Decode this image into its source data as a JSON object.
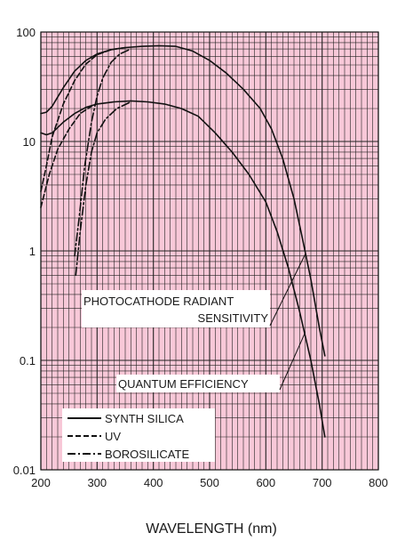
{
  "chart_data": {
    "type": "line",
    "xlabel": "WAVELENGTH (nm)",
    "ylabel": "",
    "xlim": [
      200,
      800
    ],
    "ylim": [
      0.01,
      100
    ],
    "yscale": "log",
    "grid": true,
    "background_color": "#f8c8d8",
    "line_color": "#111111",
    "x_ticks": [
      "200",
      "300",
      "400",
      "500",
      "600",
      "700",
      "800"
    ],
    "y_ticks": [
      "100",
      "10",
      "1",
      "0.1",
      "0.01"
    ],
    "series": [
      {
        "group": "photocathode_radiant_sensitivity",
        "style": "solid",
        "points": [
          [
            200,
            18
          ],
          [
            210,
            18.5
          ],
          [
            220,
            21
          ],
          [
            240,
            31
          ],
          [
            260,
            44
          ],
          [
            280,
            55
          ],
          [
            300,
            63
          ],
          [
            325,
            69
          ],
          [
            350,
            72
          ],
          [
            380,
            74
          ],
          [
            410,
            75
          ],
          [
            440,
            74
          ],
          [
            470,
            67
          ],
          [
            500,
            55
          ],
          [
            530,
            42
          ],
          [
            560,
            30
          ],
          [
            590,
            20
          ],
          [
            610,
            13
          ],
          [
            630,
            7
          ],
          [
            650,
            3
          ],
          [
            665,
            1.3
          ],
          [
            680,
            0.55
          ],
          [
            695,
            0.2
          ],
          [
            705,
            0.11
          ]
        ]
      },
      {
        "group": "photocathode_radiant_sensitivity",
        "style": "dashed",
        "points": [
          [
            200,
            3.5
          ],
          [
            210,
            6
          ],
          [
            220,
            11
          ],
          [
            240,
            22
          ],
          [
            260,
            36
          ],
          [
            280,
            51
          ],
          [
            300,
            62
          ],
          [
            325,
            69
          ],
          [
            350,
            72
          ]
        ]
      },
      {
        "group": "photocathode_radiant_sensitivity",
        "style": "dashdot",
        "points": [
          [
            260,
            0.9
          ],
          [
            268,
            2
          ],
          [
            278,
            6
          ],
          [
            290,
            15
          ],
          [
            300,
            26
          ],
          [
            310,
            38
          ],
          [
            325,
            53
          ],
          [
            340,
            63
          ],
          [
            360,
            70
          ]
        ]
      },
      {
        "group": "quantum_efficiency",
        "style": "solid",
        "points": [
          [
            200,
            12
          ],
          [
            210,
            11.5
          ],
          [
            220,
            12
          ],
          [
            240,
            15
          ],
          [
            260,
            18
          ],
          [
            280,
            20.5
          ],
          [
            300,
            22
          ],
          [
            330,
            23
          ],
          [
            360,
            23.5
          ],
          [
            390,
            23
          ],
          [
            420,
            22
          ],
          [
            450,
            20
          ],
          [
            480,
            17
          ],
          [
            510,
            12
          ],
          [
            540,
            8
          ],
          [
            570,
            5
          ],
          [
            600,
            2.8
          ],
          [
            620,
            1.5
          ],
          [
            640,
            0.7
          ],
          [
            660,
            0.28
          ],
          [
            680,
            0.1
          ],
          [
            695,
            0.04
          ],
          [
            705,
            0.02
          ]
        ]
      },
      {
        "group": "quantum_efficiency",
        "style": "dashed",
        "points": [
          [
            200,
            2.5
          ],
          [
            215,
            5
          ],
          [
            230,
            8.5
          ],
          [
            250,
            13
          ],
          [
            270,
            18
          ],
          [
            290,
            21
          ]
        ]
      },
      {
        "group": "quantum_efficiency",
        "style": "dashdot",
        "points": [
          [
            262,
            0.6
          ],
          [
            270,
            1.5
          ],
          [
            280,
            4
          ],
          [
            290,
            8
          ],
          [
            300,
            12
          ],
          [
            315,
            16
          ],
          [
            335,
            20
          ],
          [
            360,
            23
          ]
        ]
      }
    ],
    "annotations": [
      {
        "id": "radiant",
        "lines": [
          "PHOTOCATHODE RADIANT",
          "SENSITIVITY"
        ]
      },
      {
        "id": "quantum",
        "lines": [
          "QUANTUM EFFICIENCY"
        ]
      }
    ],
    "legend": {
      "placement": "bottom-left",
      "entries": [
        {
          "label": "SYNTH SILICA",
          "style": "solid"
        },
        {
          "label": "UV",
          "style": "dashed"
        },
        {
          "label": "BOROSILICATE",
          "style": "dashdot"
        }
      ]
    }
  }
}
